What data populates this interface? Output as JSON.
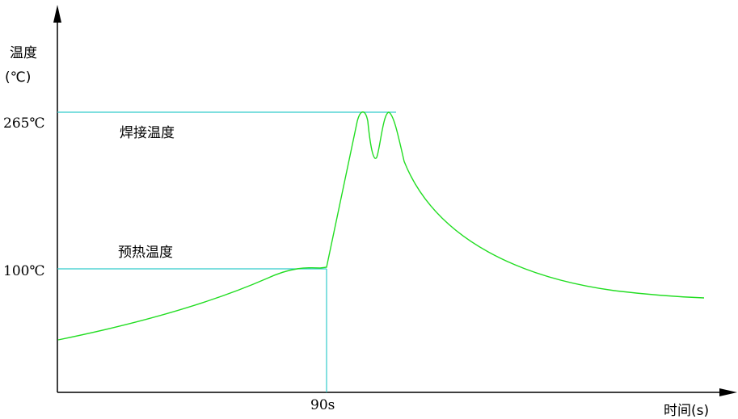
{
  "chart_data": {
    "type": "line",
    "ylabel_line1": "温度",
    "ylabel_line2": "(℃)",
    "xlabel": "时间(s)",
    "y_ticks": [
      "265℃",
      "100℃"
    ],
    "x_ticks": [
      "90s"
    ],
    "annotations": {
      "weld": "焊接温度",
      "preheat": "预热温度"
    },
    "colors": {
      "curve": "#22dd22",
      "reference": "#33cccc",
      "axis": "#000000"
    }
  }
}
